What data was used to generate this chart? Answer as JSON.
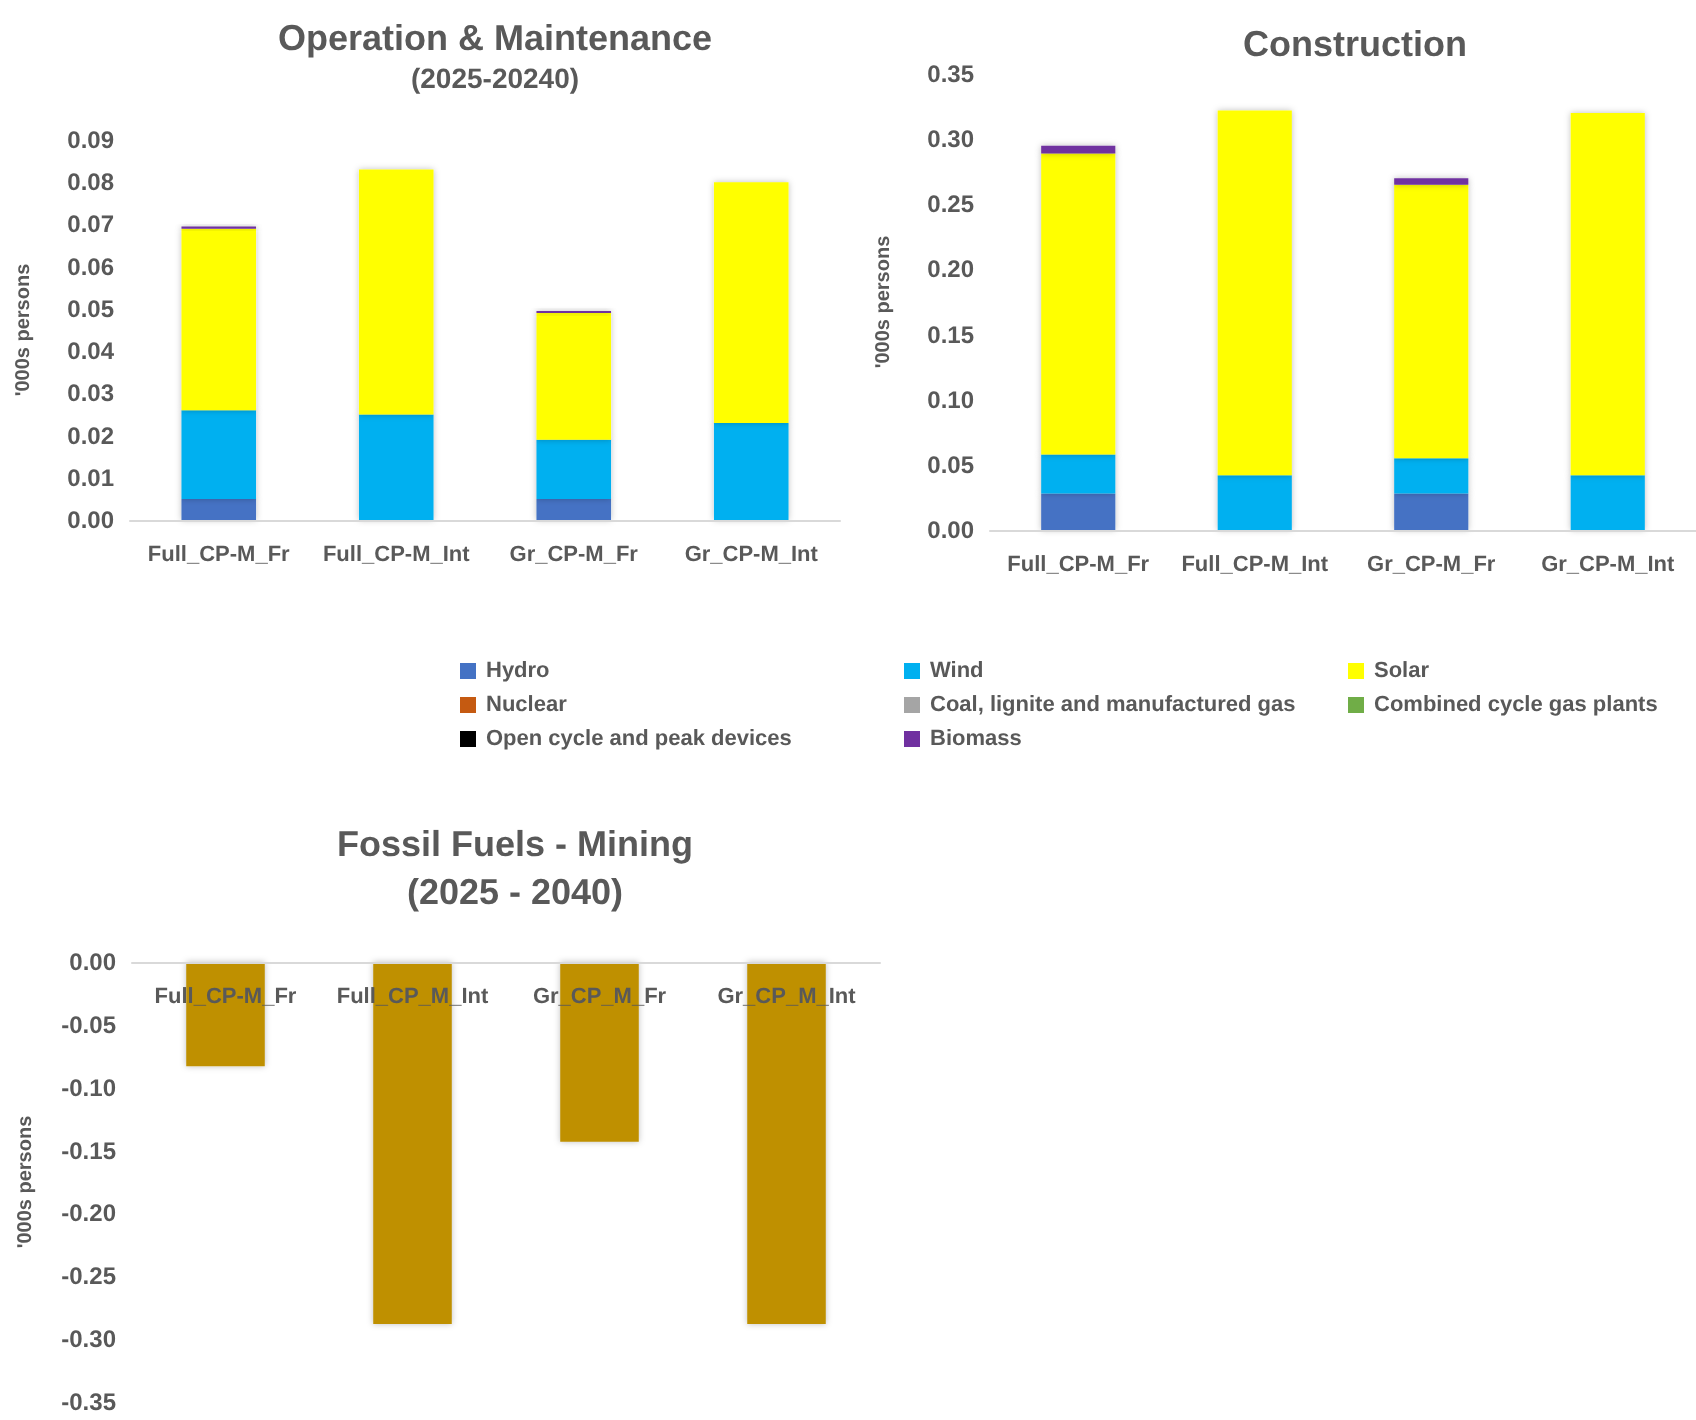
{
  "chart_data": [
    {
      "type": "bar",
      "title": "Operation & Maintenance",
      "subtitle": "(2025-20240)",
      "ylabel": "'000s persons",
      "stacked": true,
      "grid": false,
      "legend": "bottom",
      "categories": [
        "Full_CP-M_Fr",
        "Full_CP-M_Int",
        "Gr_CP-M_Fr",
        "Gr_CP-M_Int"
      ],
      "ylim": [
        0,
        0.09
      ],
      "yticks": [
        {
          "value": 0,
          "label": "0.00"
        },
        0.01,
        0.02,
        0.03,
        0.04,
        0.05,
        0.06,
        0.07,
        0.08,
        0.09
      ],
      "series": [
        {
          "name": "Hydro",
          "color": "#4472c4",
          "values": [
            0.005,
            null,
            0.005,
            null
          ]
        },
        {
          "name": "Wind",
          "color": "#00b0f0",
          "values": [
            0.021,
            0.025,
            0.014,
            0.023
          ]
        },
        {
          "name": "Solar",
          "color": "#ffff00",
          "values": [
            0.043,
            0.058,
            0.03,
            0.057
          ]
        },
        {
          "name": "Nuclear",
          "color": "#c55a11",
          "values": [
            null,
            null,
            null,
            null
          ]
        },
        {
          "name": "Coal, lignite and manufactured gas",
          "color": "#a5a5a5",
          "values": [
            null,
            null,
            null,
            null
          ]
        },
        {
          "name": "Combined cycle gas plants",
          "color": "#70ad47",
          "values": [
            null,
            null,
            null,
            null
          ]
        },
        {
          "name": "Open cycle and peak devices",
          "color": "#000000",
          "values": [
            null,
            null,
            null,
            null
          ]
        },
        {
          "name": "Biomass",
          "color": "#7030a0",
          "values": [
            0.0005,
            null,
            0.0005,
            null
          ]
        }
      ]
    },
    {
      "type": "bar",
      "title": "Construction",
      "ylabel": "'000s persons",
      "stacked": true,
      "grid": false,
      "categories": [
        "Full_CP-M_Fr",
        "Full_CP-M_Int",
        "Gr_CP-M_Fr",
        "Gr_CP-M_Int"
      ],
      "ylim": [
        0,
        0.35
      ],
      "yticks": [
        {
          "value": 0,
          "label": "0.00"
        },
        0.05,
        {
          "value": 0.1,
          "label": "0.10"
        },
        0.15,
        {
          "value": 0.2,
          "label": "0.20"
        },
        0.25,
        {
          "value": 0.3,
          "label": "0.30"
        },
        0.35
      ],
      "series": [
        {
          "color": "#4472c4",
          "values": [
            0.028,
            null,
            0.028,
            null
          ]
        },
        {
          "color": "#00b0f0",
          "values": [
            0.03,
            0.042,
            0.027,
            0.042
          ]
        },
        {
          "color": "#ffff00",
          "values": [
            0.231,
            0.28,
            0.21,
            0.278
          ]
        },
        {
          "color": "#7030a0",
          "values": [
            0.006,
            null,
            0.005,
            null
          ]
        }
      ]
    },
    {
      "type": "bar",
      "title": "Fossil Fuels - Mining",
      "subtitle": "(2025 - 2040)",
      "ylabel": "'000s persons",
      "grid": false,
      "categories": [
        "Full_CP-M_Fr",
        "Full_CP_M_Int",
        "Gr_CP_M_Fr",
        "Gr_CP_M_Int"
      ],
      "ylim": [
        -0.35,
        0
      ],
      "yticks": [
        {
          "value": -0.35,
          "label": "-0.35"
        },
        {
          "value": -0.3,
          "label": "-0.30"
        },
        -0.25,
        {
          "value": -0.2,
          "label": "-0.20"
        },
        -0.15,
        {
          "value": -0.1,
          "label": "-0.10"
        },
        -0.05,
        {
          "value": 0,
          "label": "0.00"
        }
      ],
      "series": [
        {
          "color": "#bf9000",
          "values": [
            -0.083,
            -0.288,
            -0.143,
            -0.288
          ]
        }
      ]
    }
  ]
}
